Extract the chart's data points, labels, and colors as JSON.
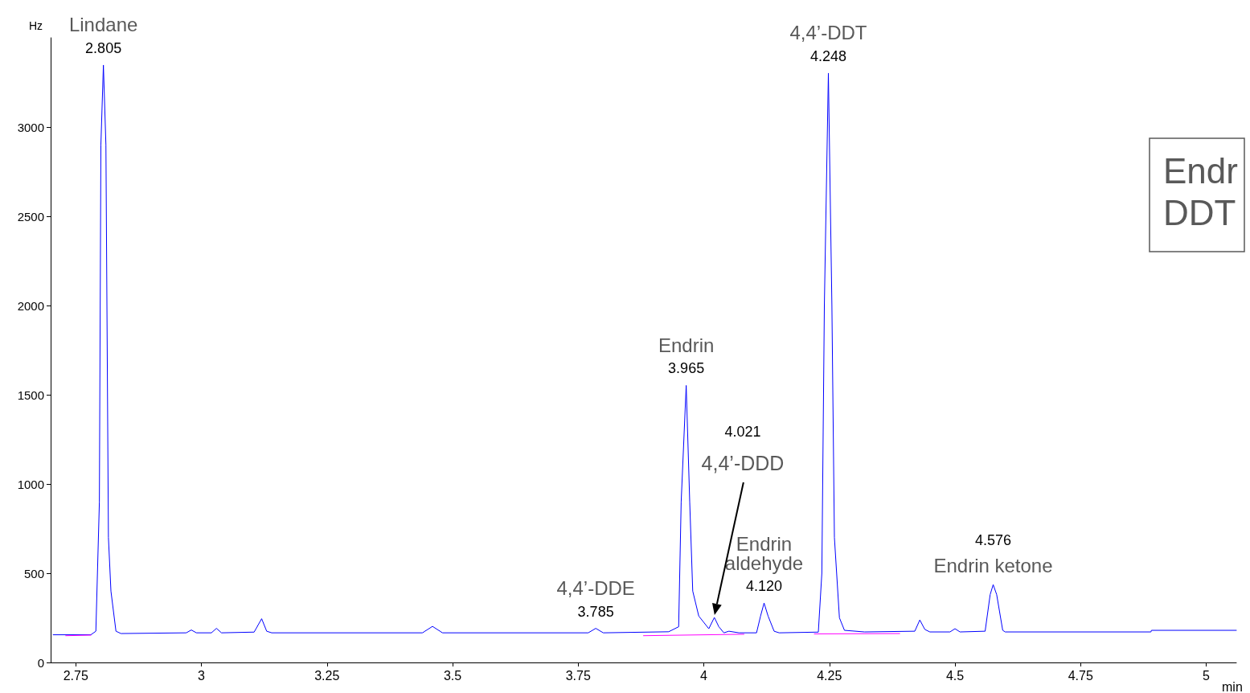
{
  "chart_data": {
    "type": "line",
    "xlabel": "min",
    "ylabel": "Hz",
    "xlim": [
      2.7,
      5.06
    ],
    "xticks": [
      2.75,
      3,
      3.25,
      3.5,
      3.75,
      4,
      4.25,
      4.5,
      4.75,
      5
    ],
    "ylim": [
      0,
      3500
    ],
    "yticks": [
      0,
      500,
      1000,
      1500,
      2000,
      2500,
      3000
    ],
    "grid": false,
    "marker": "none",
    "line_style": "solid",
    "series": [
      {
        "color": "#0000ff",
        "x": [
          2.705,
          2.78,
          2.79,
          2.797,
          2.8,
          2.805,
          2.81,
          2.815,
          2.82,
          2.83,
          2.84,
          2.97,
          2.98,
          2.99,
          3.02,
          3.03,
          3.04,
          3.105,
          3.12,
          3.13,
          3.14,
          3.44,
          3.46,
          3.48,
          3.77,
          3.785,
          3.8,
          3.93,
          3.95,
          3.955,
          3.965,
          3.972,
          3.978,
          3.99,
          4.01,
          4.021,
          4.03,
          4.04,
          4.05,
          4.07,
          4.105,
          4.113,
          4.12,
          4.128,
          4.14,
          4.15,
          4.228,
          4.235,
          4.24,
          4.248,
          4.255,
          4.26,
          4.27,
          4.28,
          4.32,
          4.42,
          4.43,
          4.44,
          4.45,
          4.49,
          4.5,
          4.51,
          4.56,
          4.57,
          4.576,
          4.583,
          4.595,
          4.6,
          4.89,
          4.891,
          5.06
        ],
        "values": [
          155,
          155,
          175,
          900,
          2900,
          3347,
          2900,
          700,
          400,
          175,
          162,
          166,
          182,
          166,
          166,
          191,
          166,
          170,
          245,
          175,
          166,
          166,
          202,
          166,
          166,
          191,
          166,
          172,
          200,
          900,
          1552,
          900,
          400,
          260,
          189,
          252,
          200,
          166,
          175,
          166,
          166,
          260,
          333,
          260,
          175,
          166,
          170,
          500,
          2000,
          3302,
          2000,
          700,
          250,
          180,
          171,
          175,
          238,
          185,
          171,
          171,
          189,
          171,
          175,
          380,
          436,
          380,
          180,
          171,
          171,
          180,
          180
        ]
      },
      {
        "color": "#ff00ff",
        "x": [
          2.73,
          2.78,
          2.785,
          3.88,
          4.08,
          4.085,
          4.22,
          4.39
        ],
        "values": [
          150,
          153,
          null,
          150,
          158,
          null,
          160,
          162
        ]
      }
    ],
    "annotations": [
      {
        "text": "2.805",
        "x": 2.805,
        "y": 3347
      },
      {
        "text": "Lindane",
        "x": 2.805,
        "y": 3347
      },
      {
        "text": "3.785",
        "x": 3.785,
        "y": 191
      },
      {
        "text": "4,4’-DDE",
        "x": 3.785,
        "y": 191
      },
      {
        "text": "3.965",
        "x": 3.965,
        "y": 1552
      },
      {
        "text": "Endrin",
        "x": 3.965,
        "y": 1552
      },
      {
        "text": "4.120",
        "x": 4.12,
        "y": 333
      },
      {
        "text": "Endrin\naldehyde",
        "x": 4.12,
        "y": 333
      },
      {
        "text": "4.248",
        "x": 4.248,
        "y": 3302
      },
      {
        "text": "4,4’-DDT",
        "x": 4.248,
        "y": 3302
      },
      {
        "text": "Endrin ketone",
        "x": 4.576,
        "y": 436
      },
      {
        "text": "4.576",
        "x": 4.576,
        "y": 436
      },
      "4.021",
      "4,4’-DDD",
      "Endr",
      "DDT"
    ]
  }
}
